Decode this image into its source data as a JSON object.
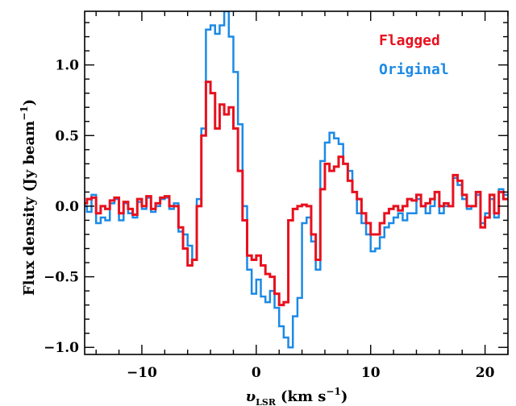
{
  "chart_data": {
    "type": "line",
    "step": true,
    "xlabel_main": "υ",
    "xlabel_sub": "LSR",
    "xlabel_units": "(km s",
    "xlabel_exp": "−1",
    "xlabel_close": ")",
    "ylabel_main": "Flux density (Jy beam",
    "ylabel_exp": "−1",
    "ylabel_close": ")",
    "xlim": [
      -15.0,
      22.0
    ],
    "ylim": [
      -1.05,
      1.38
    ],
    "xticks": [
      -10,
      0,
      10,
      20
    ],
    "xtick_labels": [
      "−10",
      "0",
      "10",
      "20"
    ],
    "yticks": [
      -1.0,
      -0.5,
      0.0,
      0.5,
      1.0
    ],
    "ytick_labels": [
      "−1.0",
      "−0.5",
      "0.0",
      "0.5",
      "1.0"
    ],
    "legend": [
      {
        "label": "Flagged",
        "color": "#e8101e"
      },
      {
        "label": "Original",
        "color": "#1c8ae6"
      }
    ],
    "x": [
      -15.0,
      -14.6,
      -14.2,
      -13.8,
      -13.4,
      -13.0,
      -12.6,
      -12.2,
      -11.8,
      -11.4,
      -11.0,
      -10.6,
      -10.2,
      -9.8,
      -9.4,
      -9.0,
      -8.6,
      -8.2,
      -7.8,
      -7.4,
      -7.0,
      -6.6,
      -6.2,
      -5.8,
      -5.4,
      -5.0,
      -4.6,
      -4.2,
      -3.8,
      -3.4,
      -3.0,
      -2.6,
      -2.2,
      -1.8,
      -1.4,
      -1.0,
      -0.6,
      -0.2,
      0.2,
      0.6,
      1.0,
      1.4,
      1.8,
      2.2,
      2.6,
      3.0,
      3.4,
      3.8,
      4.2,
      4.6,
      5.0,
      5.4,
      5.8,
      6.2,
      6.6,
      7.0,
      7.4,
      7.8,
      8.2,
      8.6,
      9.0,
      9.4,
      9.8,
      10.2,
      10.6,
      11.0,
      11.4,
      11.8,
      12.2,
      12.6,
      13.0,
      13.4,
      13.8,
      14.2,
      14.6,
      15.0,
      15.4,
      15.8,
      16.2,
      16.6,
      17.0,
      17.4,
      17.8,
      18.2,
      18.6,
      19.0,
      19.4,
      19.8,
      20.2,
      20.6,
      21.0,
      21.4,
      21.8
    ],
    "series": [
      {
        "name": "Original",
        "color": "#1c8ae6",
        "values": [
          0.0,
          -0.04,
          0.08,
          -0.12,
          -0.08,
          -0.1,
          0.02,
          0.05,
          -0.1,
          0.02,
          -0.05,
          -0.08,
          0.03,
          -0.02,
          0.06,
          -0.04,
          0.0,
          0.05,
          0.06,
          -0.02,
          0.02,
          -0.18,
          -0.2,
          -0.28,
          -0.38,
          0.05,
          0.55,
          1.25,
          1.28,
          1.22,
          1.28,
          1.38,
          1.2,
          0.95,
          0.58,
          0.0,
          -0.45,
          -0.62,
          -0.52,
          -0.64,
          -0.68,
          -0.6,
          -0.72,
          -0.85,
          -0.93,
          -1.0,
          -0.78,
          -0.65,
          -0.12,
          -0.08,
          -0.25,
          -0.45,
          0.32,
          0.45,
          0.52,
          0.48,
          0.44,
          0.3,
          0.25,
          0.1,
          -0.05,
          -0.12,
          -0.2,
          -0.32,
          -0.3,
          -0.22,
          -0.15,
          -0.12,
          -0.08,
          -0.05,
          -0.1,
          -0.05,
          -0.05,
          0.05,
          0.0,
          -0.05,
          0.0,
          0.1,
          -0.05,
          0.0,
          0.0,
          0.2,
          0.15,
          0.05,
          -0.02,
          0.0,
          0.08,
          -0.12,
          -0.05,
          0.05,
          -0.08,
          0.12,
          0.08
        ]
      },
      {
        "name": "Flagged",
        "color": "#e8101e",
        "values": [
          0.02,
          0.05,
          0.06,
          -0.05,
          0.0,
          -0.02,
          0.04,
          0.06,
          -0.05,
          0.03,
          -0.02,
          -0.06,
          0.05,
          0.0,
          0.07,
          -0.02,
          0.02,
          0.06,
          0.07,
          0.0,
          0.0,
          -0.15,
          -0.3,
          -0.42,
          -0.38,
          0.0,
          0.5,
          0.88,
          0.8,
          0.55,
          0.72,
          0.65,
          0.7,
          0.55,
          0.25,
          -0.1,
          -0.35,
          -0.38,
          -0.35,
          -0.42,
          -0.48,
          -0.5,
          -0.62,
          -0.7,
          -0.68,
          -0.1,
          -0.02,
          0.0,
          0.01,
          0.0,
          -0.2,
          -0.38,
          0.12,
          0.3,
          0.25,
          0.28,
          0.35,
          0.3,
          0.18,
          0.1,
          0.05,
          -0.05,
          -0.12,
          -0.2,
          -0.2,
          -0.12,
          -0.05,
          -0.02,
          0.0,
          -0.03,
          0.0,
          0.05,
          0.04,
          0.08,
          0.0,
          0.02,
          0.05,
          0.1,
          0.0,
          0.02,
          0.0,
          0.22,
          0.18,
          0.08,
          0.0,
          0.0,
          0.1,
          -0.15,
          -0.08,
          0.08,
          -0.05,
          0.1,
          0.05
        ]
      }
    ]
  }
}
